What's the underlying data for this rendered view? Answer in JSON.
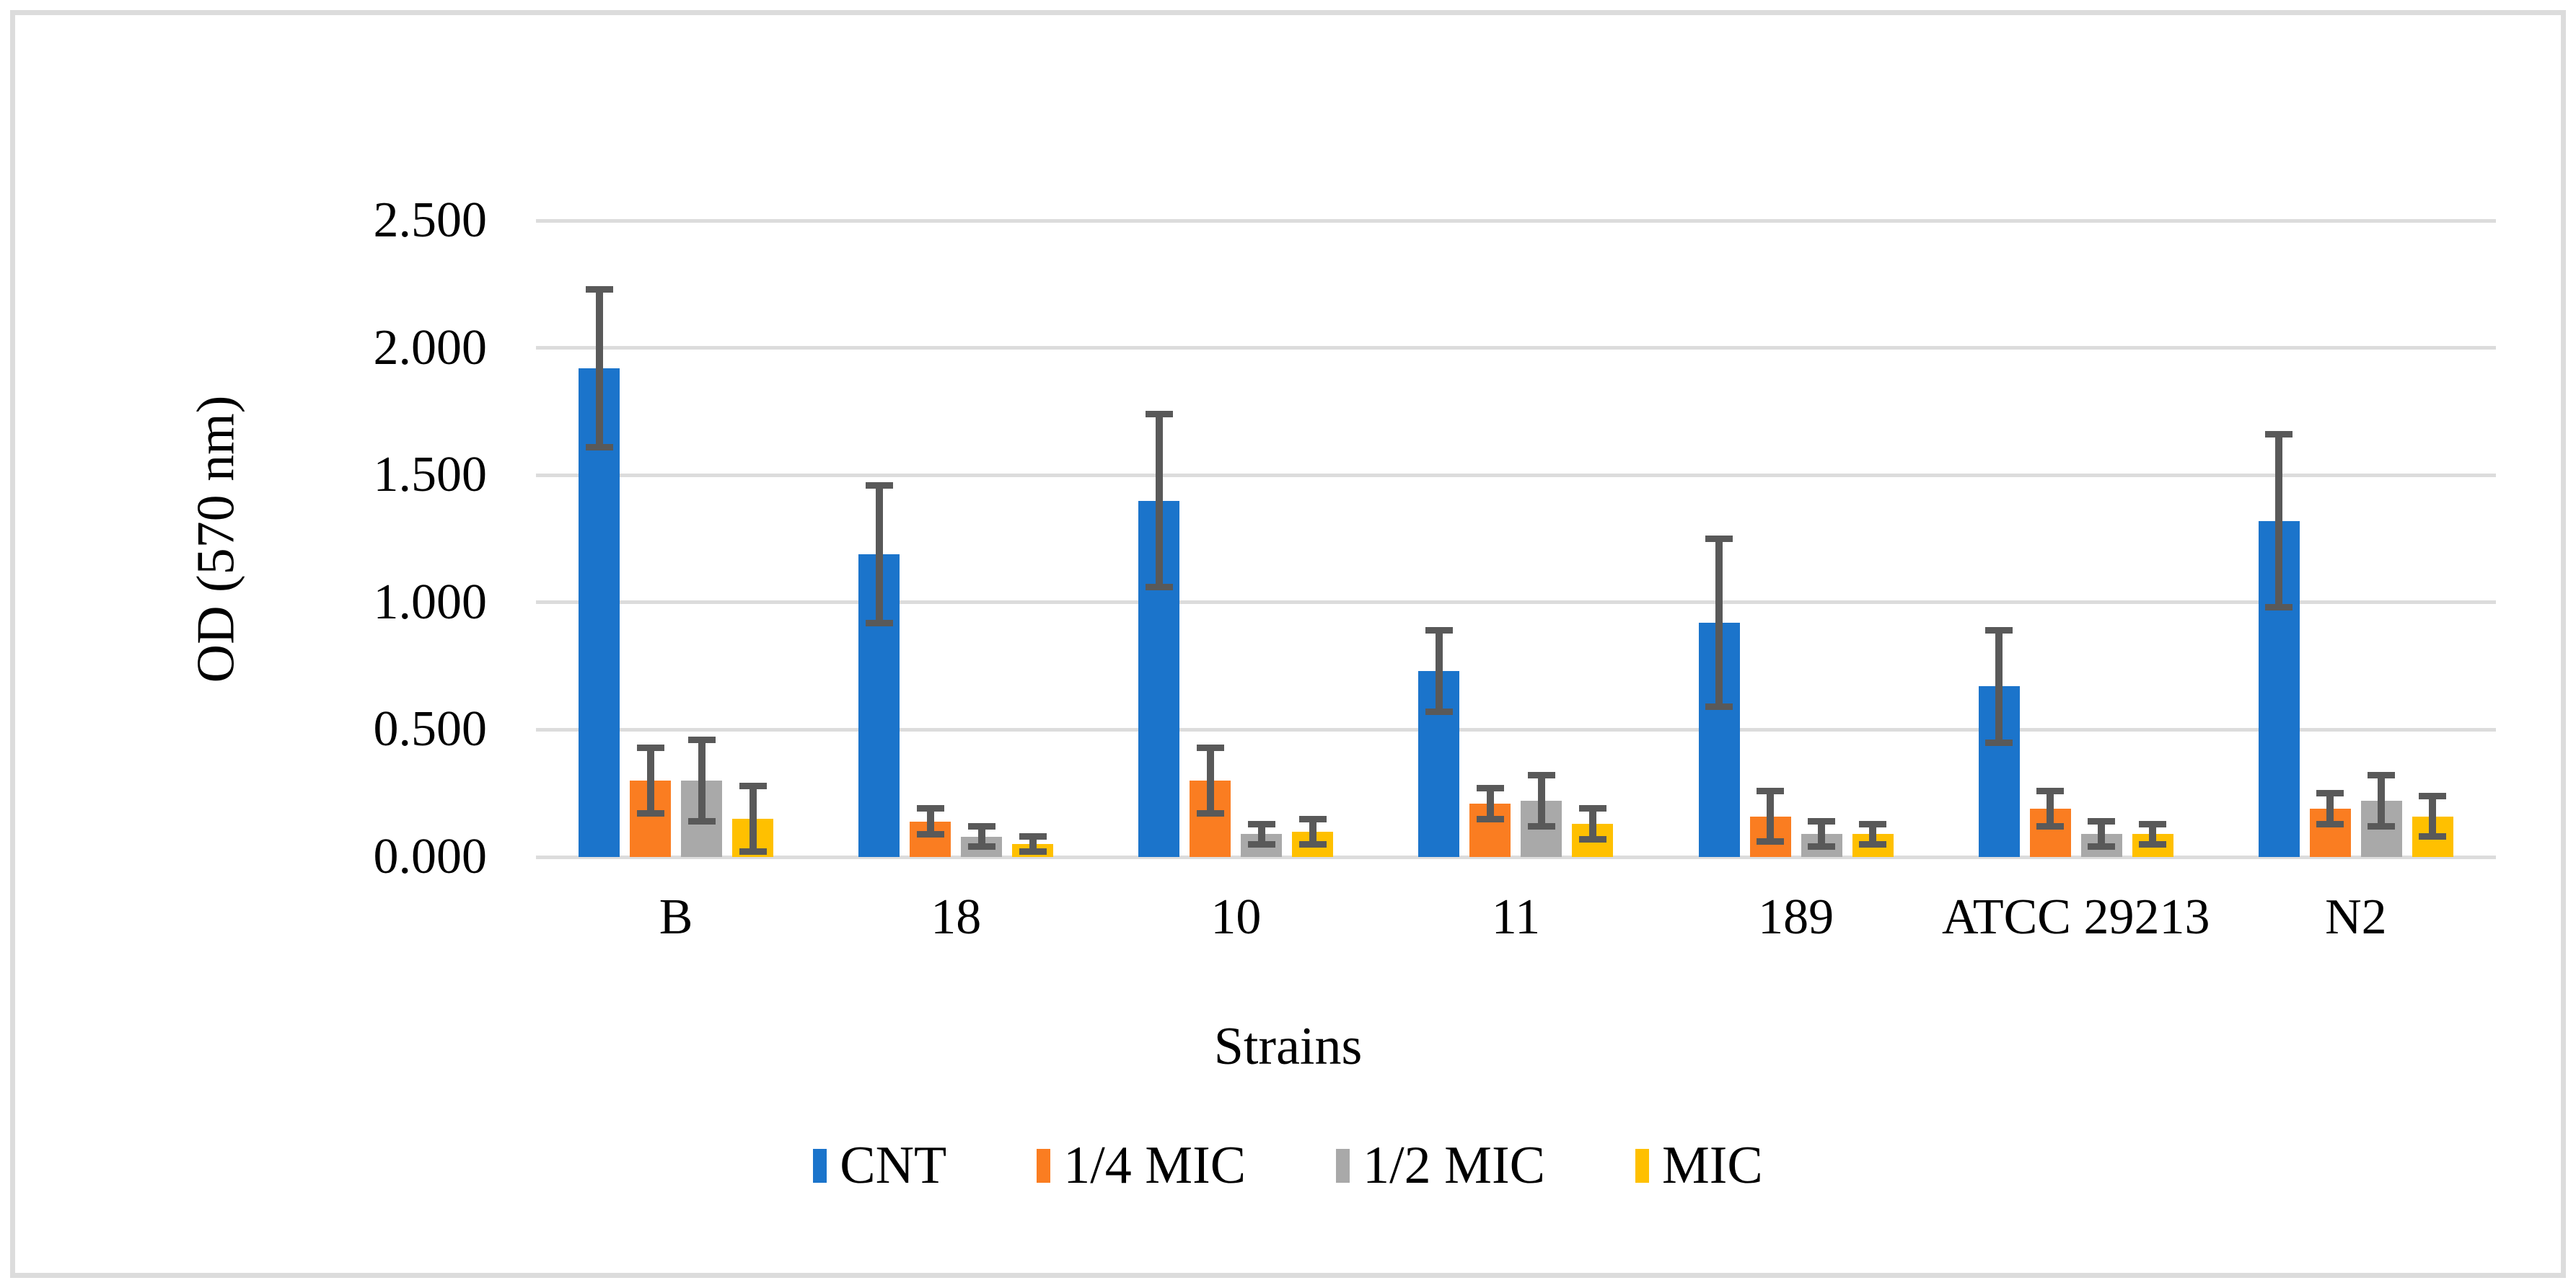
{
  "figure": {
    "background": "#FFFFFF",
    "border_color": "#DCDCDC"
  },
  "chart_data": {
    "type": "bar",
    "title": "",
    "xlabel": "Strains",
    "ylabel": "OD (570 nm)",
    "ylim": [
      0,
      2.5
    ],
    "ytick_step": 0.5,
    "ytick_labels": [
      "0.000",
      "0.500",
      "1.000",
      "1.500",
      "2.000",
      "2.500"
    ],
    "grid": true,
    "gridline_color": "#DCDCDC",
    "error_bar_color": "#595959",
    "legend_position": "bottom",
    "categories": [
      "B",
      "18",
      "10",
      "11",
      "189",
      "ATCC 29213",
      "N2"
    ],
    "series": [
      {
        "name": "CNT",
        "color": "#1B74CB",
        "values": [
          1.92,
          1.19,
          1.4,
          0.73,
          0.92,
          0.67,
          1.32
        ],
        "errors": [
          0.31,
          0.27,
          0.34,
          0.16,
          0.33,
          0.22,
          0.34
        ]
      },
      {
        "name": "1/4 MIC",
        "color": "#FA7D21",
        "values": [
          0.3,
          0.14,
          0.3,
          0.21,
          0.16,
          0.19,
          0.19
        ],
        "errors": [
          0.13,
          0.05,
          0.13,
          0.06,
          0.1,
          0.07,
          0.06
        ]
      },
      {
        "name": "1/2 MIC",
        "color": "#A9A9A9",
        "values": [
          0.3,
          0.08,
          0.09,
          0.22,
          0.09,
          0.09,
          0.22
        ],
        "errors": [
          0.16,
          0.04,
          0.04,
          0.1,
          0.05,
          0.05,
          0.1
        ]
      },
      {
        "name": "MIC",
        "color": "#FFC000",
        "values": [
          0.15,
          0.05,
          0.1,
          0.13,
          0.09,
          0.09,
          0.16
        ],
        "errors": [
          0.13,
          0.03,
          0.05,
          0.06,
          0.04,
          0.04,
          0.08
        ]
      }
    ]
  }
}
